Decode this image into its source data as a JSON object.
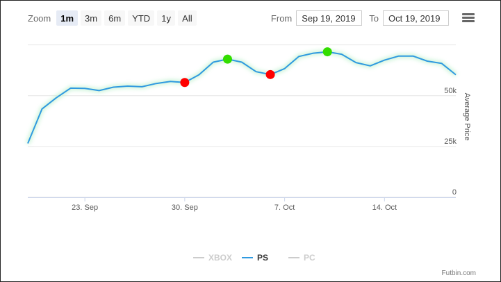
{
  "toolbar": {
    "zoom_label": "Zoom",
    "zoom_buttons": [
      "1m",
      "3m",
      "6m",
      "YTD",
      "1y",
      "All"
    ],
    "active_zoom": "1m",
    "from_label": "From",
    "from_value": "Sep 19, 2019",
    "to_label": "To",
    "to_value": "Oct 19, 2019",
    "menu_icon": "hamburger-menu-icon"
  },
  "chart_data": {
    "type": "line",
    "ylabel": "Average Price",
    "ylim": [
      0,
      80000
    ],
    "xlim": [
      "2019-09-19",
      "2019-10-19"
    ],
    "yticks": [
      {
        "value": 0,
        "label": "0"
      },
      {
        "value": 25000,
        "label": "25k"
      },
      {
        "value": 50000,
        "label": "50k"
      }
    ],
    "xticks": [
      {
        "date": "2019-09-23",
        "label": "23. Sep"
      },
      {
        "date": "2019-09-30",
        "label": "30. Sep"
      },
      {
        "date": "2019-10-07",
        "label": "7. Oct"
      },
      {
        "date": "2019-10-14",
        "label": "14. Oct"
      }
    ],
    "grid": true,
    "legend_position": "bottom",
    "series": [
      {
        "name": "XBOX",
        "visible": false,
        "color": "#cccccc",
        "points": []
      },
      {
        "name": "PS",
        "visible": true,
        "color": "#2f9ae0",
        "points": [
          {
            "date": "2019-09-19",
            "value": 26500
          },
          {
            "date": "2019-09-20",
            "value": 43500
          },
          {
            "date": "2019-09-21",
            "value": 49000
          },
          {
            "date": "2019-09-22",
            "value": 53700
          },
          {
            "date": "2019-09-23",
            "value": 53600
          },
          {
            "date": "2019-09-24",
            "value": 52500
          },
          {
            "date": "2019-09-25",
            "value": 54200
          },
          {
            "date": "2019-09-26",
            "value": 54700
          },
          {
            "date": "2019-09-27",
            "value": 54400
          },
          {
            "date": "2019-09-28",
            "value": 56000
          },
          {
            "date": "2019-09-29",
            "value": 57000
          },
          {
            "date": "2019-09-30",
            "value": 56500
          },
          {
            "date": "2019-10-01",
            "value": 60300
          },
          {
            "date": "2019-10-02",
            "value": 66500
          },
          {
            "date": "2019-10-03",
            "value": 68000
          },
          {
            "date": "2019-10-04",
            "value": 66500
          },
          {
            "date": "2019-10-05",
            "value": 61800
          },
          {
            "date": "2019-10-06",
            "value": 60400
          },
          {
            "date": "2019-10-07",
            "value": 63300
          },
          {
            "date": "2019-10-08",
            "value": 69300
          },
          {
            "date": "2019-10-09",
            "value": 70900
          },
          {
            "date": "2019-10-10",
            "value": 71600
          },
          {
            "date": "2019-10-11",
            "value": 70400
          },
          {
            "date": "2019-10-12",
            "value": 66300
          },
          {
            "date": "2019-10-13",
            "value": 64700
          },
          {
            "date": "2019-10-14",
            "value": 67500
          },
          {
            "date": "2019-10-15",
            "value": 69500
          },
          {
            "date": "2019-10-16",
            "value": 69500
          },
          {
            "date": "2019-10-17",
            "value": 67000
          },
          {
            "date": "2019-10-18",
            "value": 65900
          },
          {
            "date": "2019-10-19",
            "value": 60300
          }
        ]
      },
      {
        "name": "PC",
        "visible": false,
        "color": "#cccccc",
        "points": []
      }
    ],
    "markers": [
      {
        "date": "2019-09-30",
        "value": 56500,
        "color": "#ff0000"
      },
      {
        "date": "2019-10-03",
        "value": 68000,
        "color": "#33dd00"
      },
      {
        "date": "2019-10-06",
        "value": 60400,
        "color": "#ff0000"
      },
      {
        "date": "2019-10-10",
        "value": 71600,
        "color": "#33dd00"
      }
    ]
  },
  "credits": "Futbin.com"
}
